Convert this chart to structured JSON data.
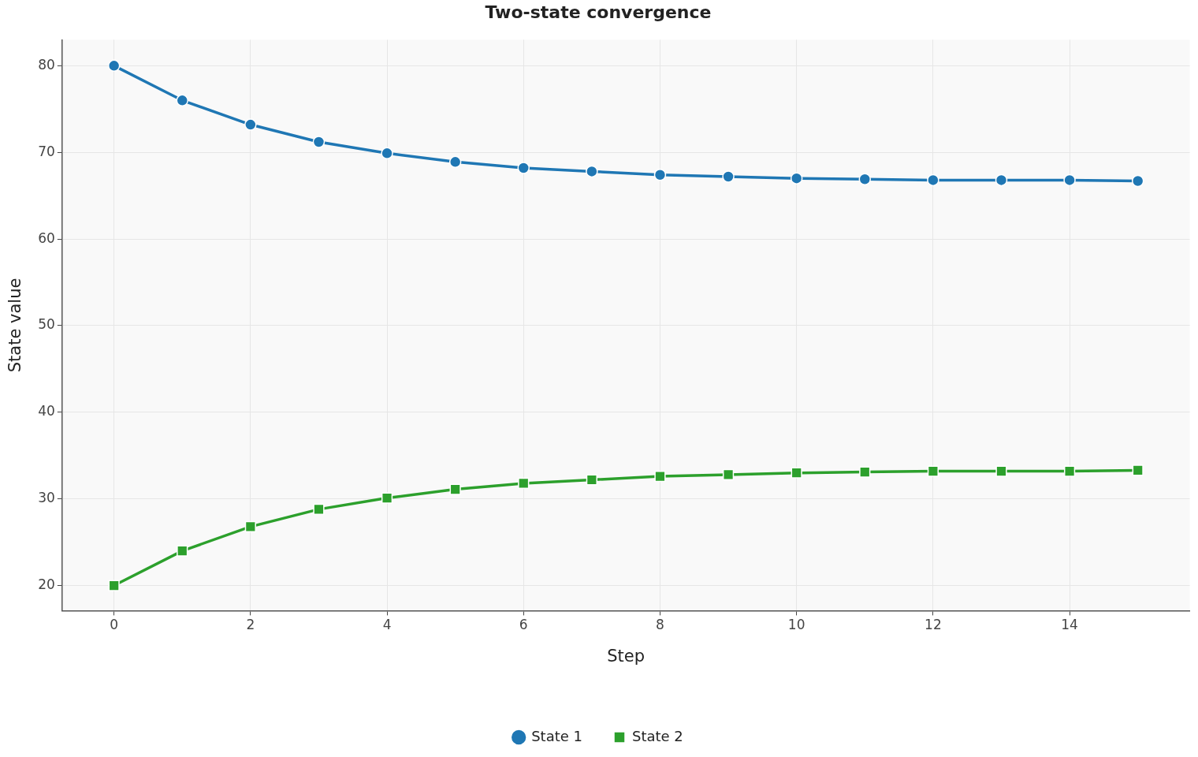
{
  "chart_data": {
    "type": "line",
    "title": "Two-state convergence",
    "xlabel": "Step",
    "ylabel": "State value",
    "x": [
      0,
      1,
      2,
      3,
      4,
      5,
      6,
      7,
      8,
      9,
      10,
      11,
      12,
      13,
      14,
      15
    ],
    "series": [
      {
        "name": "State 1",
        "color": "#1f77b4",
        "marker": "circle",
        "values": [
          80,
          76,
          73.2,
          71.2,
          69.9,
          68.9,
          68.2,
          67.8,
          67.4,
          67.2,
          67.0,
          66.9,
          66.8,
          66.8,
          66.8,
          66.7
        ]
      },
      {
        "name": "State 2",
        "color": "#2ca02c",
        "marker": "square",
        "values": [
          20,
          24,
          26.8,
          28.8,
          30.1,
          31.1,
          31.8,
          32.2,
          32.6,
          32.8,
          33.0,
          33.1,
          33.2,
          33.2,
          33.2,
          33.3
        ]
      }
    ],
    "xlim": [
      -0.76,
      15.76
    ],
    "xticks": [
      0,
      2,
      4,
      6,
      8,
      10,
      12,
      14
    ],
    "ylim": [
      17.1,
      83.0
    ],
    "yticks": [
      20,
      30,
      40,
      50,
      60,
      70,
      80
    ],
    "grid": true,
    "legend": "bottom",
    "line_style": "solid"
  }
}
